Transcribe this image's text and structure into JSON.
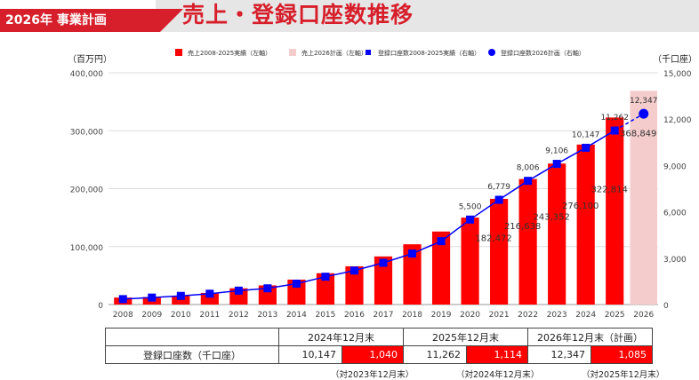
{
  "header": {
    "badge": "2026年 事業計画",
    "title": "売上・登録口座数推移"
  },
  "colors": {
    "brand_red": "#d71f2b",
    "bar_actual": "#ff0000",
    "bar_plan": "#f4cccc",
    "line": "#0000ff"
  },
  "chart_data": {
    "type": "bar+line",
    "title": "売上・登録口座数推移",
    "categories": [
      "2008",
      "2009",
      "2010",
      "2011",
      "2012",
      "2013",
      "2014",
      "2015",
      "2016",
      "2017",
      "2018",
      "2019",
      "2020",
      "2021",
      "2022",
      "2023",
      "2024",
      "2025",
      "2026"
    ],
    "left_axis": {
      "label": "（百万円）",
      "ylim": [
        0,
        400000
      ],
      "ticks": [
        "0",
        "100,000",
        "200,000",
        "300,000",
        "400,000"
      ]
    },
    "right_axis": {
      "label": "（千口座）",
      "ylim": [
        0,
        15000
      ],
      "ticks": [
        "0",
        "3,000",
        "6,000",
        "9,000",
        "12,000",
        "15,000"
      ]
    },
    "legend": {
      "position": "top",
      "items": [
        "売上2008-2025実績（左軸）",
        "売上2026計画（左軸）",
        "登録口座数2008-2025実績（右軸）",
        "登録口座数2026計画（右軸）"
      ]
    },
    "series": [
      {
        "name": "売上2008-2025実績（左軸）",
        "type": "bar",
        "axis": "left",
        "values": [
          12000,
          13000,
          15000,
          20000,
          28000,
          33000,
          43000,
          54000,
          66000,
          83000,
          104000,
          126000,
          150000,
          182472,
          216638,
          243352,
          276100,
          322814,
          null
        ],
        "labels": [
          null,
          null,
          null,
          null,
          null,
          null,
          null,
          null,
          null,
          null,
          null,
          null,
          null,
          "182,472",
          "216,638",
          "243,352",
          "276,100",
          "322,814",
          null
        ]
      },
      {
        "name": "売上2026計画（左軸）",
        "type": "bar",
        "axis": "left",
        "values": [
          null,
          null,
          null,
          null,
          null,
          null,
          null,
          null,
          null,
          null,
          null,
          null,
          null,
          null,
          null,
          null,
          null,
          null,
          368849
        ],
        "labels": [
          null,
          null,
          null,
          null,
          null,
          null,
          null,
          null,
          null,
          null,
          null,
          null,
          null,
          null,
          null,
          null,
          null,
          null,
          "368,849"
        ]
      },
      {
        "name": "登録口座数2008-2025実績（右軸）",
        "type": "line",
        "axis": "right",
        "values": [
          350,
          450,
          560,
          700,
          900,
          1050,
          1350,
          1800,
          2200,
          2700,
          3300,
          4100,
          5500,
          6779,
          8006,
          9106,
          10147,
          11262,
          null
        ],
        "labels": [
          null,
          null,
          null,
          null,
          null,
          null,
          null,
          null,
          null,
          null,
          null,
          null,
          "5,500",
          "6,779",
          "8,006",
          "9,106",
          "10,147",
          "11,262",
          null
        ]
      },
      {
        "name": "登録口座数2026計画（右軸）",
        "type": "line",
        "axis": "right",
        "values": [
          null,
          null,
          null,
          null,
          null,
          null,
          null,
          null,
          null,
          null,
          null,
          null,
          null,
          null,
          null,
          null,
          null,
          null,
          12347
        ],
        "labels": [
          null,
          null,
          null,
          null,
          null,
          null,
          null,
          null,
          null,
          null,
          null,
          null,
          null,
          null,
          null,
          null,
          null,
          null,
          "12,347"
        ]
      }
    ],
    "grid": true
  },
  "table": {
    "headers": [
      "",
      "2024年12月末",
      "2025年12月末",
      "2026年12月末（計画）"
    ],
    "row_label": "登録口座数（千口座）",
    "cells": [
      {
        "value": "10,147",
        "delta": "1,040",
        "note": "（対2023年12月末）"
      },
      {
        "value": "11,262",
        "delta": "1,114",
        "note": "（対2024年12月末）"
      },
      {
        "value": "12,347",
        "delta": "1,085",
        "note": "（対2025年12月末）"
      }
    ]
  }
}
